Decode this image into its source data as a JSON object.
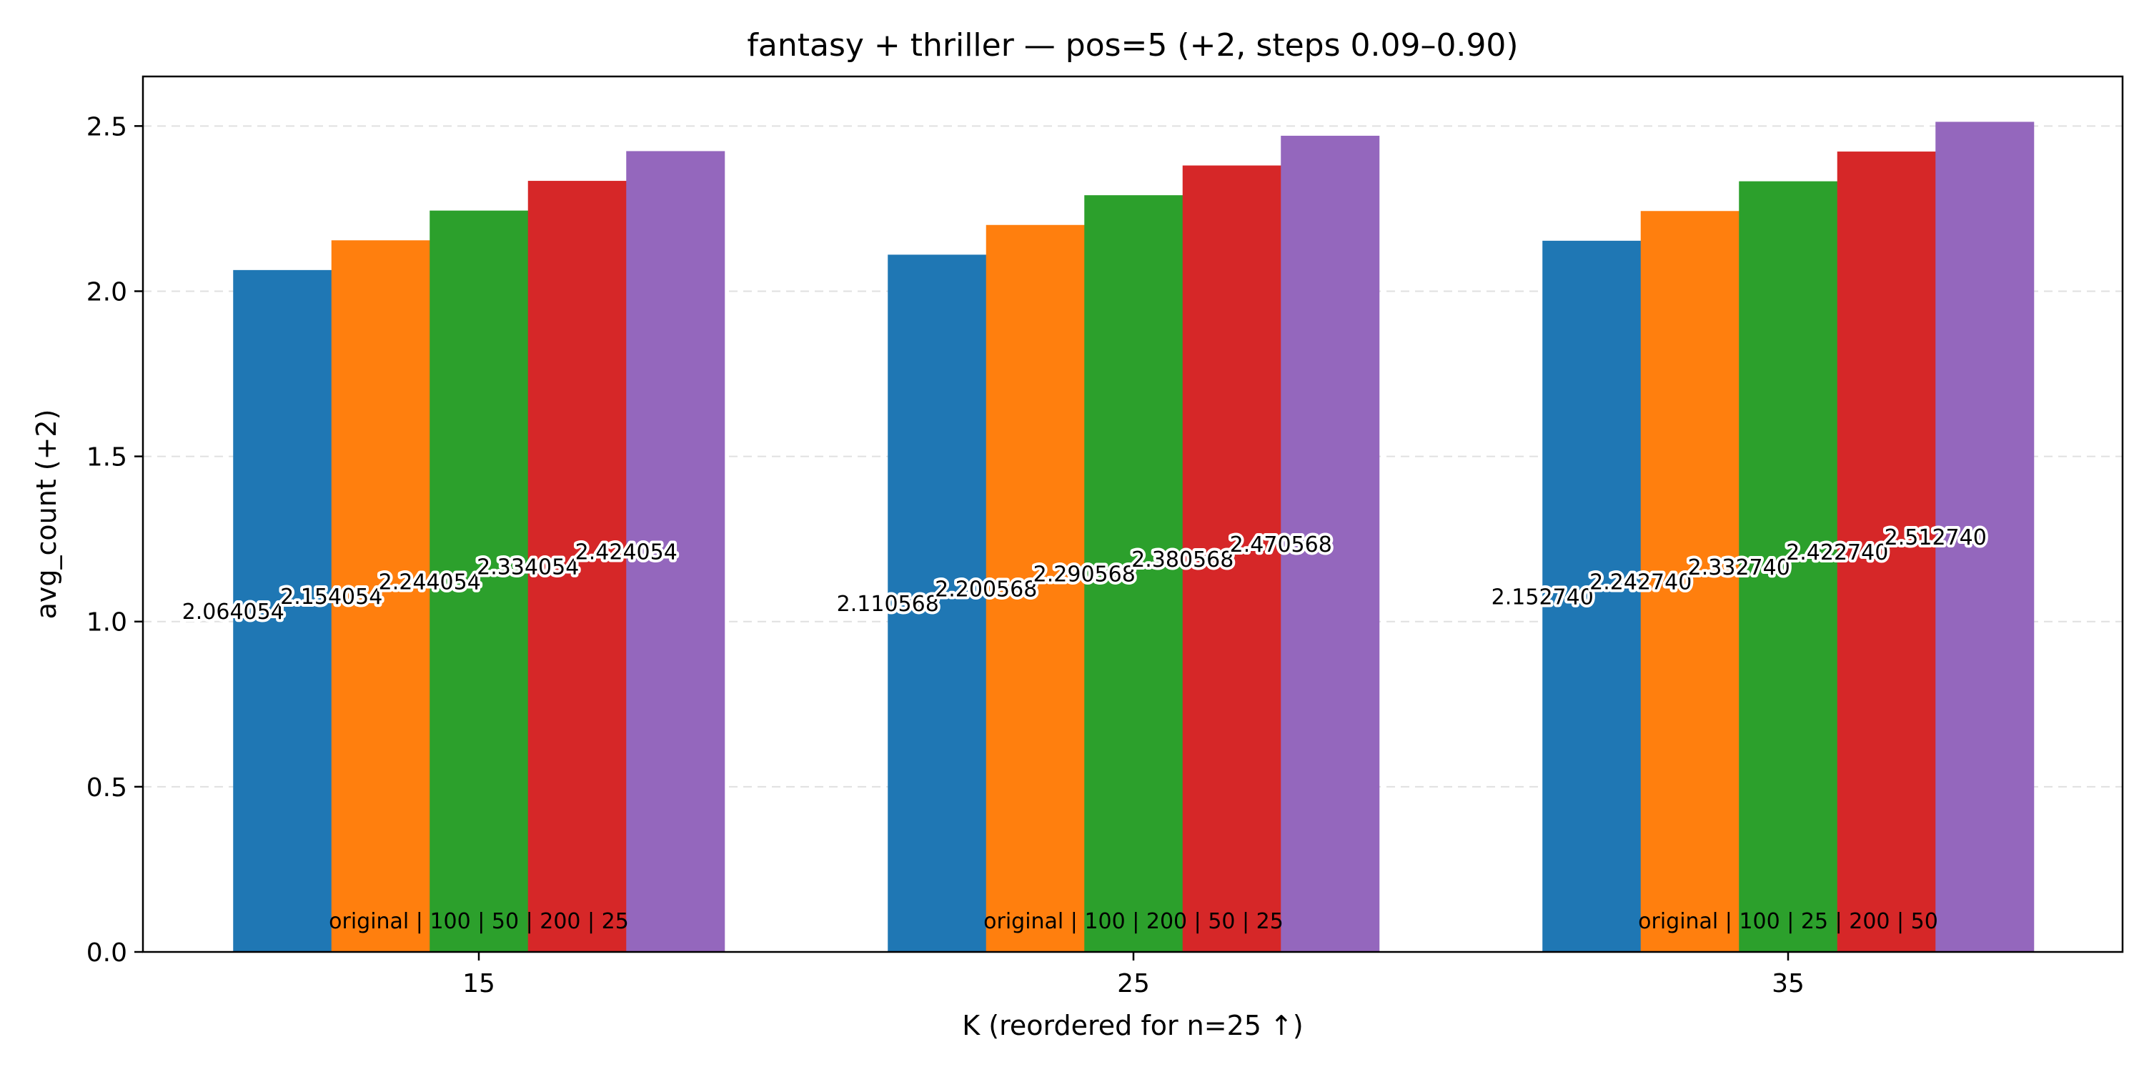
{
  "chart_data": {
    "type": "bar",
    "title": "fantasy + thriller — pos=5 (+2, steps 0.09–0.90)",
    "xlabel": "K (reordered for n=25 ↑)",
    "ylabel": "avg_count (+2)",
    "ylim": [
      0,
      2.65
    ],
    "yticks": [
      "0.0",
      "0.5",
      "1.0",
      "1.5",
      "2.0",
      "2.5"
    ],
    "ytick_values": [
      0,
      0.5,
      1.0,
      1.5,
      2.0,
      2.5
    ],
    "grid": "y, dashed",
    "categories": [
      "15",
      "25",
      "35"
    ],
    "group_notes": [
      "original | 100 | 50 | 200 | 25",
      "original | 100 | 200 | 50 | 25",
      "original | 100 | 25 | 200 | 50"
    ],
    "series_colors": [
      "#1f77b4",
      "#ff7f0e",
      "#2ca02c",
      "#d62728",
      "#9467bd"
    ],
    "values": [
      [
        2.064054,
        2.154054,
        2.244054,
        2.334054,
        2.424054
      ],
      [
        2.110568,
        2.200568,
        2.290568,
        2.380568,
        2.470568
      ],
      [
        2.15274,
        2.24274,
        2.33274,
        2.42274,
        2.51274
      ]
    ],
    "value_labels": [
      [
        "2.064054",
        "2.154054",
        "2.244054",
        "2.334054",
        "2.424054"
      ],
      [
        "2.110568",
        "2.200568",
        "2.290568",
        "2.380568",
        "2.470568"
      ],
      [
        "2.152740",
        "2.242740",
        "2.332740",
        "2.422740",
        "2.512740"
      ]
    ]
  }
}
